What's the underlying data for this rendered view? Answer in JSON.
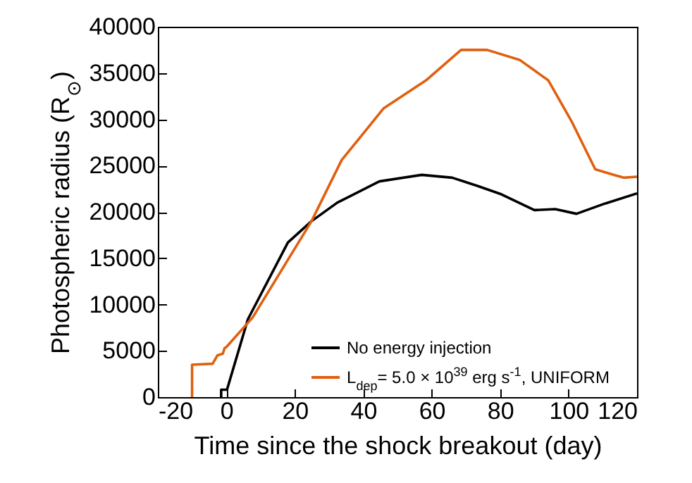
{
  "chart_data": {
    "type": "line",
    "xlabel": "Time since the shock breakout (day)",
    "ylabel": "Photospheric radius (R$_{⊙}$)",
    "xlim": [
      -20,
      120
    ],
    "xticks": [
      -20,
      0,
      20,
      40,
      60,
      80,
      100,
      120
    ],
    "ylim": [
      0,
      40000
    ],
    "yticks": [
      0,
      5000,
      10000,
      15000,
      20000,
      25000,
      30000,
      35000,
      40000
    ],
    "grid": false,
    "legend": "bottom right",
    "series": [
      {
        "name": "No energy injection",
        "color": "#000000",
        "x": [
          -1.5,
          -1.5,
          0.2,
          6.3,
          18,
          24.9,
          32.4,
          44.7,
          57.1,
          66,
          73.5,
          80.4,
          90,
          96.1,
          102.3,
          110.6,
          120
        ],
        "values": [
          0,
          800,
          800,
          8400,
          16700,
          19000,
          21000,
          23300,
          24000,
          23700,
          22800,
          21900,
          20200,
          20300,
          19800,
          20900,
          22000
        ]
      },
      {
        "name": "L$_{dep}$= 5.0 × 10$^{39}$ erg s$^{-1}$, UNIFORM",
        "color": "#e06010",
        "x": [
          -10,
          -10,
          -4,
          -2.6,
          -1,
          -0.5,
          0,
          7.7,
          24.9,
          33.7,
          46,
          58.3,
          68.6,
          76.2,
          85.8,
          94.1,
          101,
          107.8,
          113.3,
          116.1,
          120
        ],
        "values": [
          0,
          3500,
          3600,
          4500,
          4700,
          5300,
          5400,
          8600,
          19000,
          25600,
          31200,
          34200,
          37500,
          37500,
          36400,
          34200,
          29700,
          24600,
          24000,
          23700,
          23800
        ]
      }
    ]
  }
}
